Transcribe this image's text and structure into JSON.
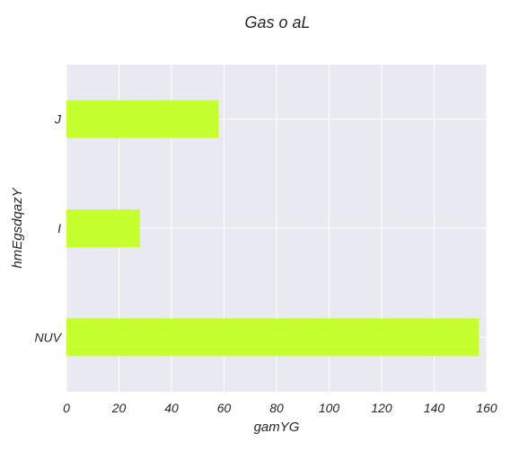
{
  "chart_data": {
    "type": "bar",
    "orientation": "horizontal",
    "title": "Gas o aL",
    "xlabel": "gamYG",
    "ylabel": "hmEgsdqazY",
    "categories": [
      "NUV",
      "I",
      "J"
    ],
    "values": [
      157,
      28,
      58
    ],
    "xlim": [
      0,
      160
    ],
    "xticks": [
      0,
      20,
      40,
      60,
      80,
      100,
      120,
      140,
      160
    ],
    "xtick_labels": [
      "0",
      "20",
      "40",
      "60",
      "80",
      "100",
      "120",
      "140",
      "160"
    ],
    "grid": true,
    "legend": "none",
    "colors": {
      "bar": "#c6ff2e",
      "background": "#e9e9f1",
      "grid": "#ffffff",
      "text": "#262626"
    }
  }
}
